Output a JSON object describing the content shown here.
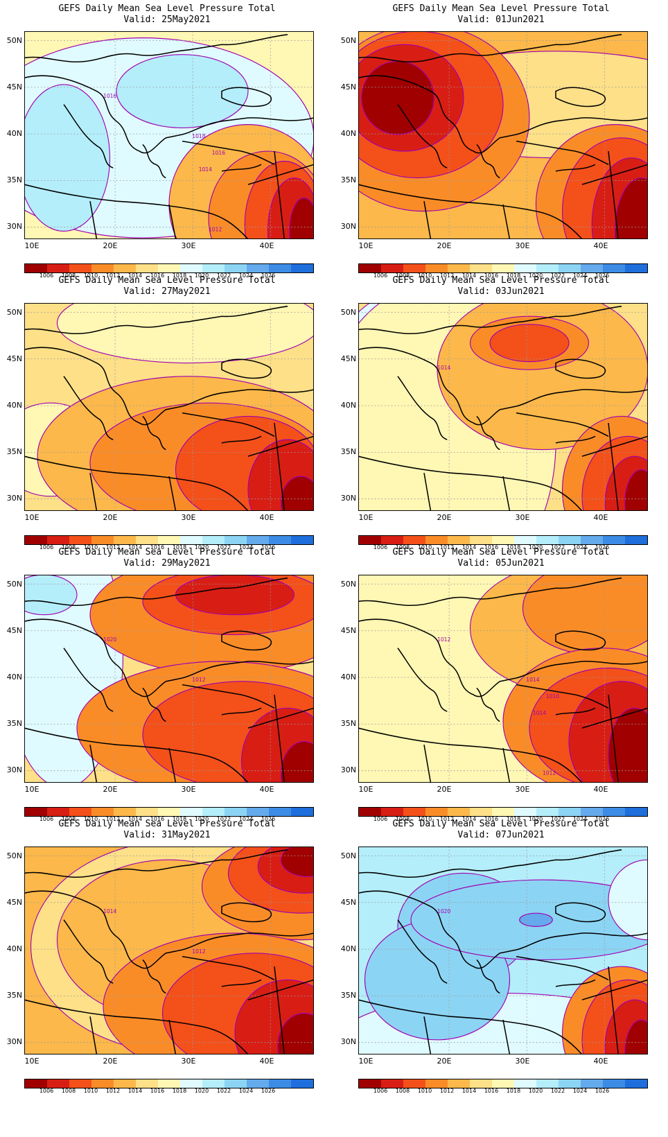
{
  "figure": {
    "panels": [
      {
        "title": "GEFS Daily Mean Sea Level Pressure Total",
        "valid": "Valid: 25May2021",
        "labels": [
          "1016",
          "1018",
          "1016",
          "1014",
          "1012"
        ],
        "scheme": "a"
      },
      {
        "title": "GEFS Daily Mean Sea Level Pressure Total",
        "valid": "Valid: 01Jun2021",
        "labels": [],
        "scheme": "b"
      },
      {
        "title": "GEFS Daily Mean Sea Level Pressure Total",
        "valid": "Valid: 27May2021",
        "labels": [],
        "scheme": "c"
      },
      {
        "title": "GEFS Daily Mean Sea Level Pressure Total",
        "valid": "Valid: 03Jun2021",
        "labels": [
          "1014"
        ],
        "scheme": "d"
      },
      {
        "title": "GEFS Daily Mean Sea Level Pressure Total",
        "valid": "Valid: 29May2021",
        "labels": [
          "1020",
          "1012"
        ],
        "scheme": "e"
      },
      {
        "title": "GEFS Daily Mean Sea Level Pressure Total",
        "valid": "Valid: 05Jun2021",
        "labels": [
          "1012",
          "1014",
          "1010",
          "1014",
          "1012"
        ],
        "scheme": "f"
      },
      {
        "title": "GEFS Daily Mean Sea Level Pressure Total",
        "valid": "Valid: 31May2021",
        "labels": [
          "1014",
          "1012"
        ],
        "scheme": "g"
      },
      {
        "title": "GEFS Daily Mean Sea Level Pressure Total",
        "valid": "Valid: 07Jun2021",
        "labels": [
          "1020"
        ],
        "scheme": "h"
      }
    ],
    "lat_labels": [
      "50N",
      "45N",
      "40N",
      "35N",
      "30N"
    ],
    "lon_labels": [
      "10E",
      "20E",
      "30E",
      "40E"
    ],
    "colorbar": {
      "labels": [
        "1006",
        "1008",
        "1010",
        "1012",
        "1014",
        "1016",
        "1018",
        "1020",
        "1022",
        "1024",
        "1026"
      ],
      "colors": [
        "#a00000",
        "#d81e14",
        "#f4501a",
        "#fa8c28",
        "#fcb84a",
        "#fde088",
        "#fff7b4",
        "#e0fbff",
        "#b4eefa",
        "#8cd4f4",
        "#64aaec",
        "#3c8ce6",
        "#1e6edc"
      ]
    }
  }
}
